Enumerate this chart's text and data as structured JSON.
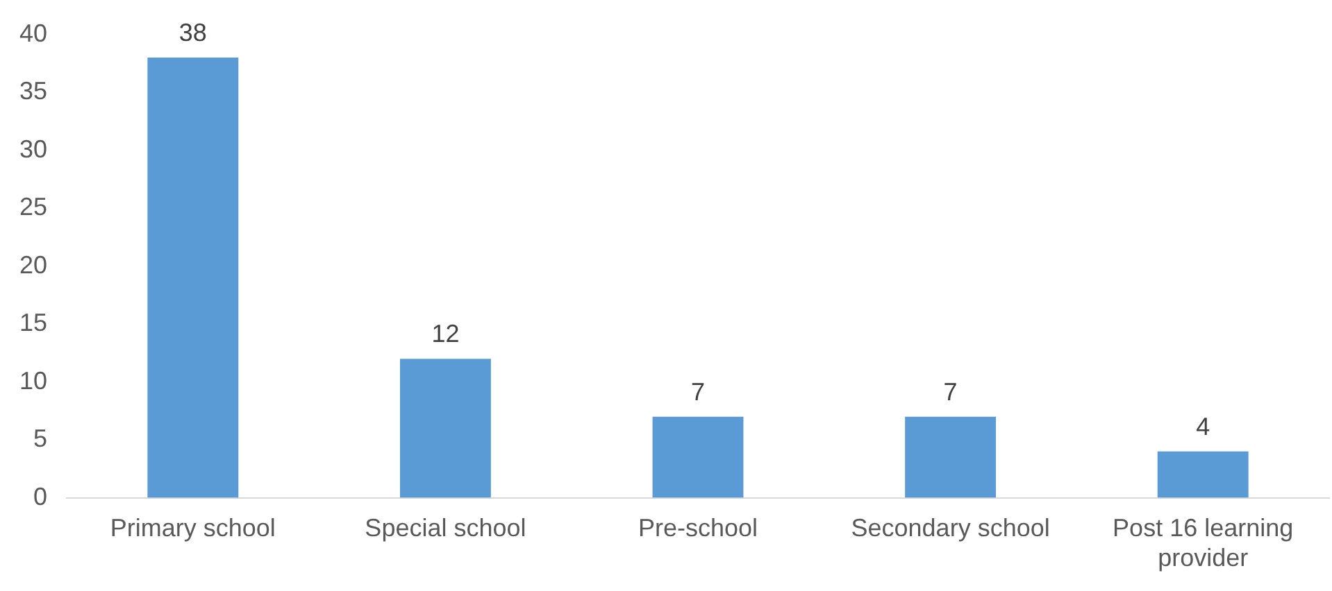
{
  "chart_data": {
    "type": "bar",
    "categories": [
      "Primary school",
      "Special school",
      "Pre-school",
      "Secondary school",
      "Post 16 learning provider"
    ],
    "values": [
      38,
      12,
      7,
      7,
      4
    ],
    "color": "#5b9bd5",
    "ylim": [
      0,
      40
    ],
    "yticks": [
      0,
      5,
      10,
      15,
      20,
      25,
      30,
      35,
      40
    ],
    "grid": false,
    "data_labels": true
  }
}
